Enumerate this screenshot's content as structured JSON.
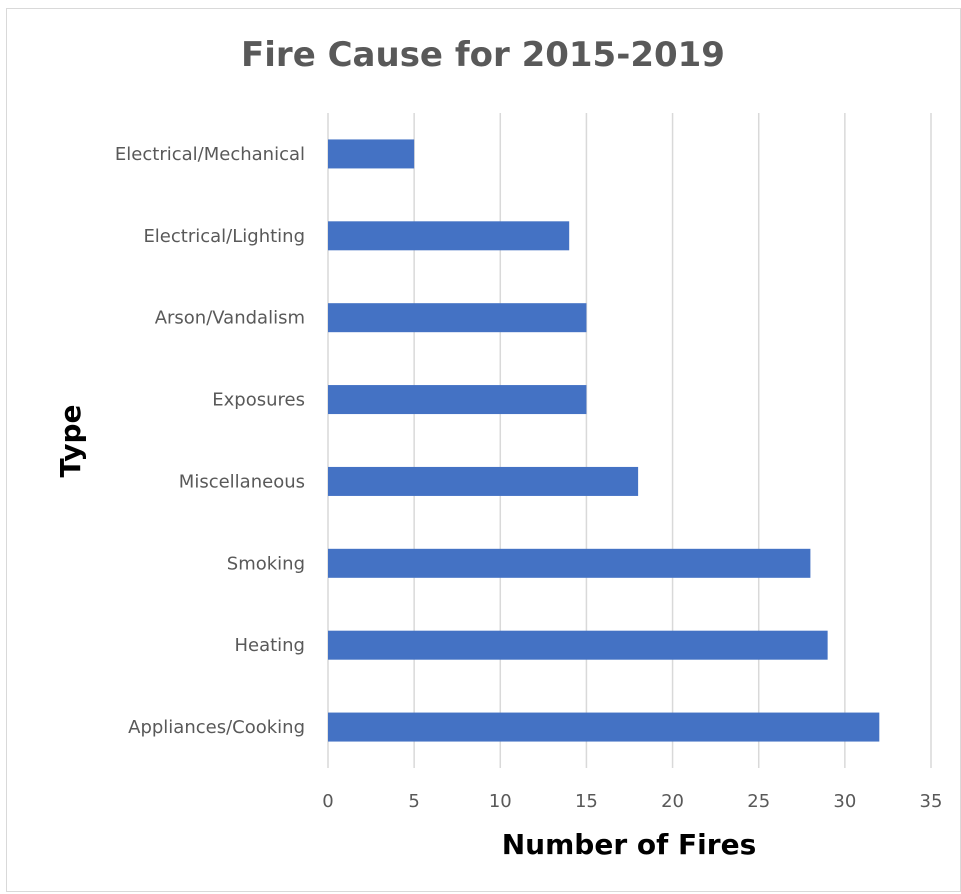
{
  "chart_data": {
    "type": "bar",
    "orientation": "horizontal",
    "title": "Fire Cause for 2015-2019",
    "xlabel": "Number of Fires",
    "ylabel": "Type",
    "categories": [
      "Appliances/Cooking",
      "Heating",
      "Smoking",
      "Miscellaneous",
      "Exposures",
      "Arson/Vandalism",
      "Electrical/Lighting",
      "Electrical/Mechanical"
    ],
    "values": [
      32,
      29,
      28,
      18,
      15,
      15,
      14,
      5
    ],
    "xlim": [
      0,
      35
    ],
    "xticks": [
      "0",
      "5",
      "10",
      "15",
      "20",
      "25",
      "30",
      "35"
    ],
    "grid": "vertical",
    "bar_color": "#4472c4"
  }
}
